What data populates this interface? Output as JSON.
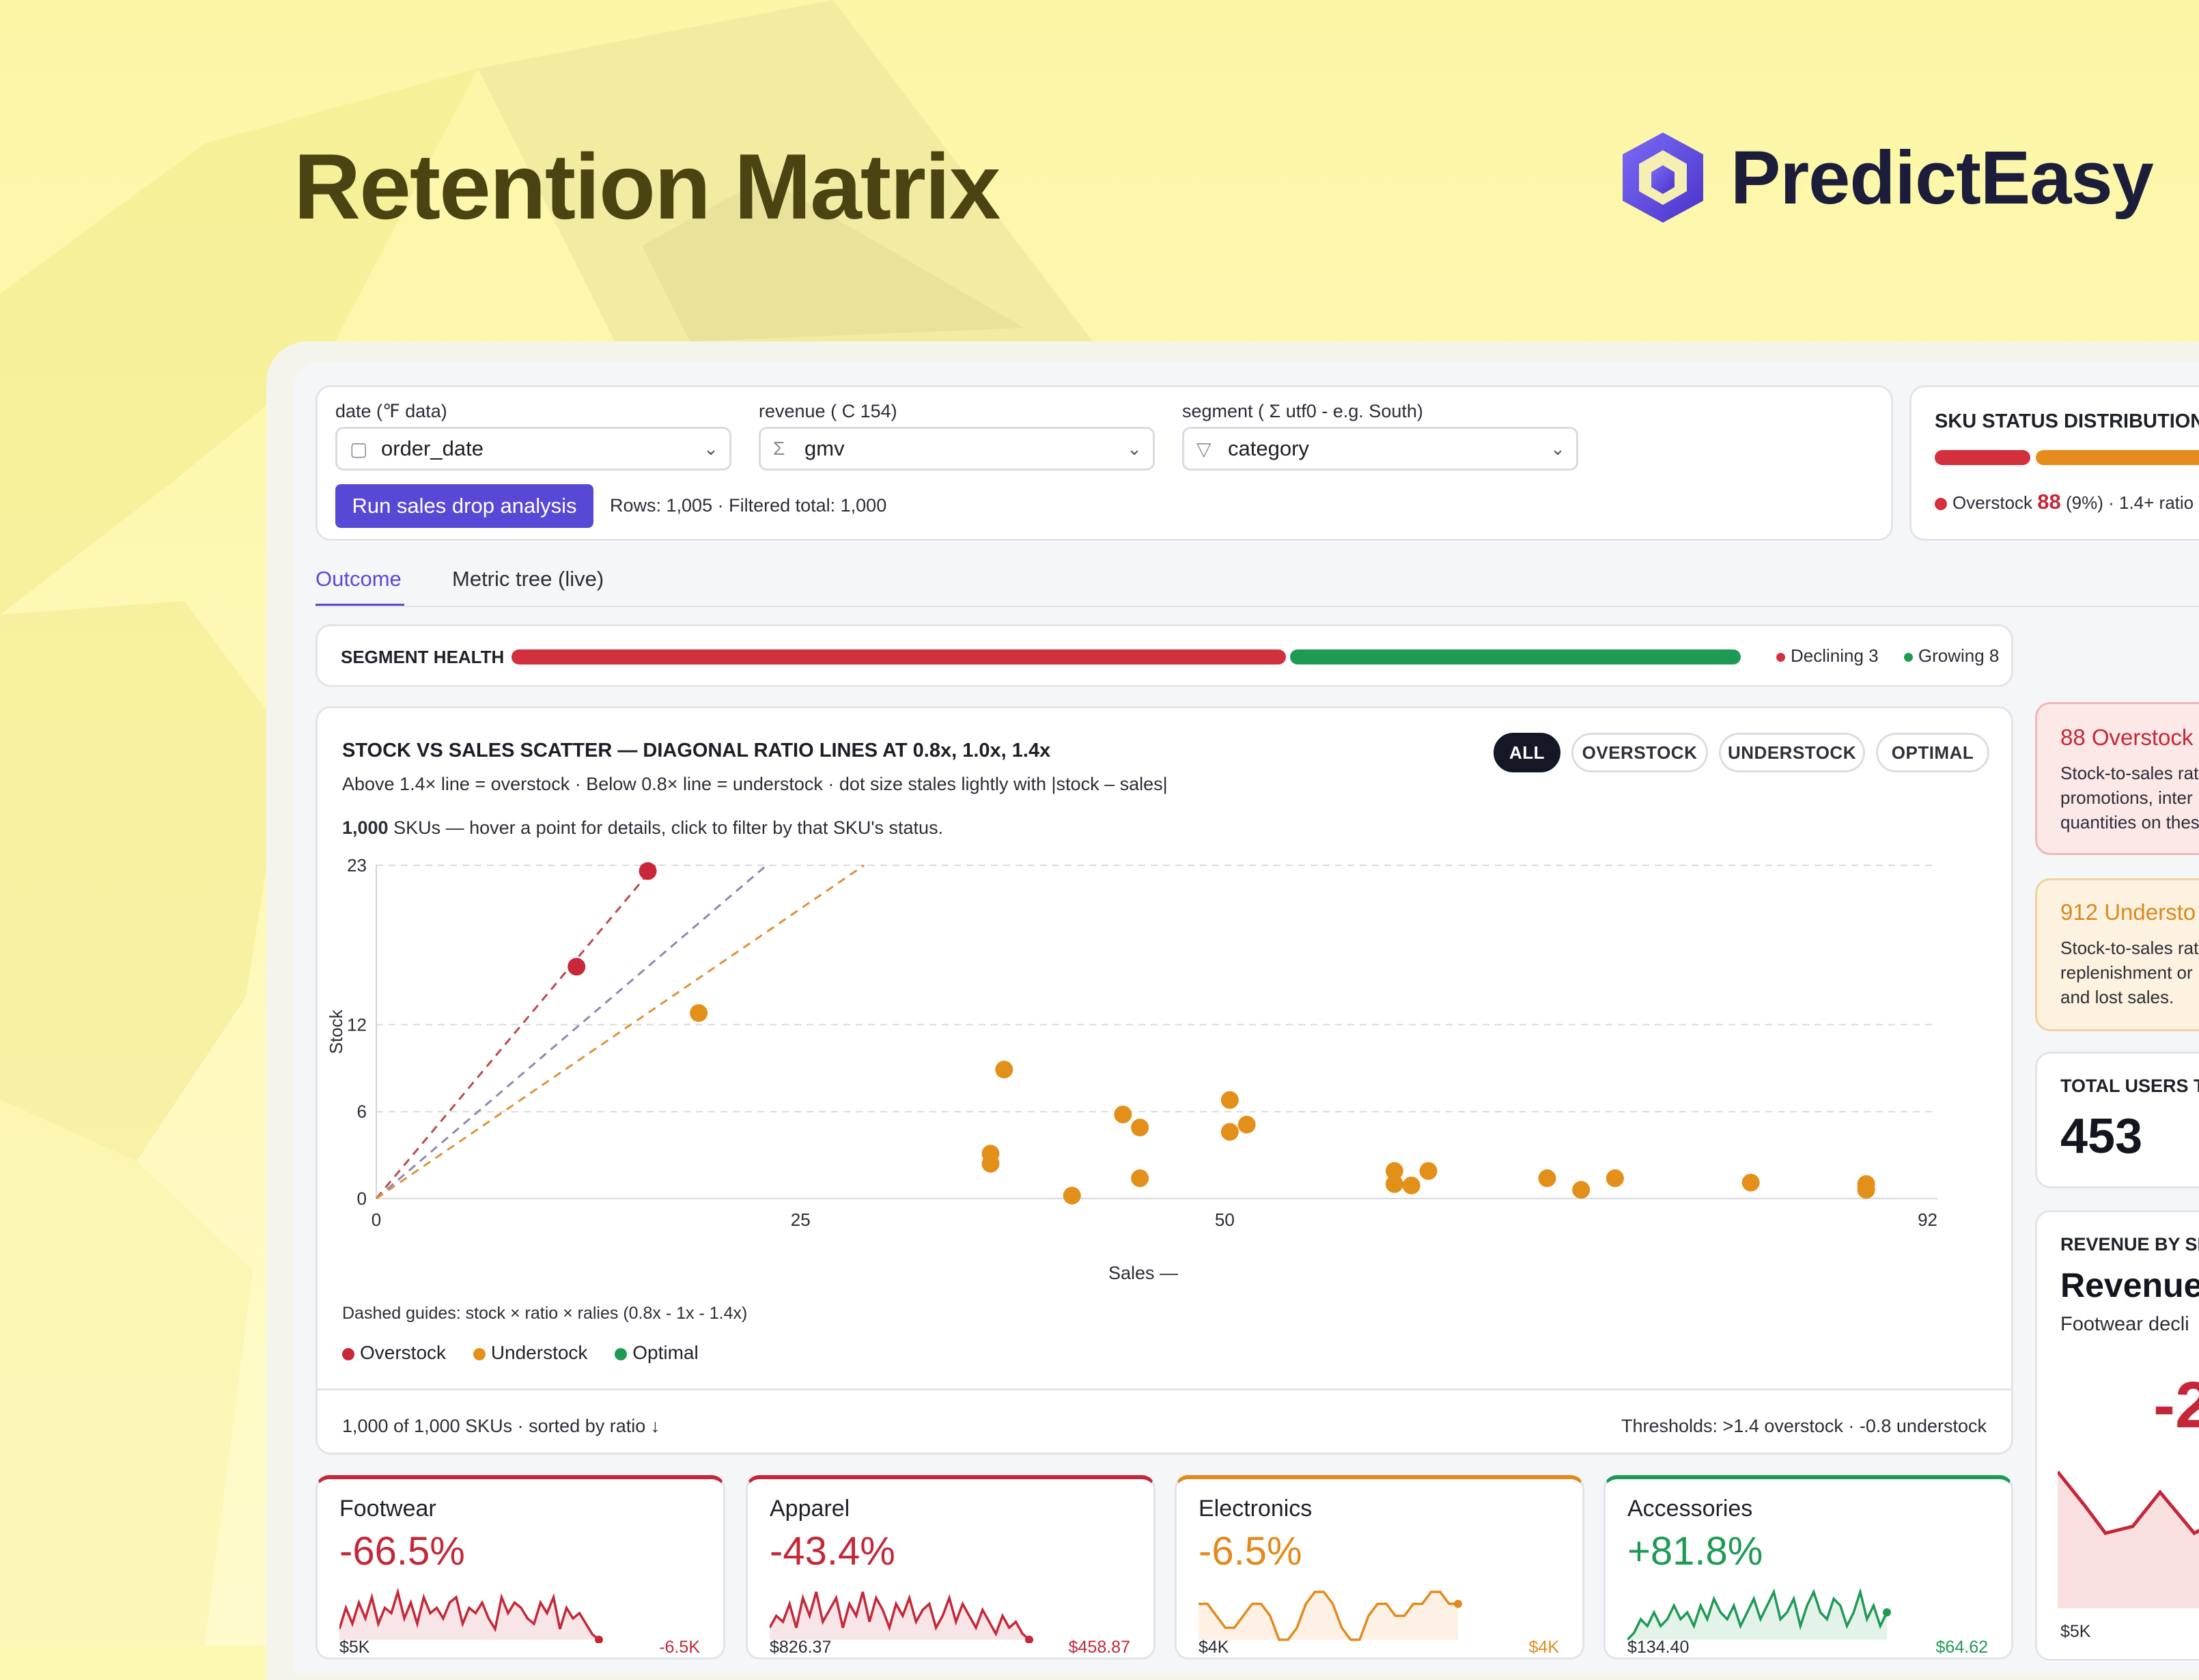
{
  "hero": {
    "title": "Retention Matrix",
    "brand_name": "PredictEasy"
  },
  "filters": {
    "date": {
      "label": "date (℉ data)",
      "value": "order_date",
      "icon": "calendar-icon"
    },
    "revenue": {
      "label": "revenue ( C 154)",
      "value": "gmv",
      "icon": "sigma-icon"
    },
    "segment": {
      "label": "segment ( Σ utf0 - e.g. South)",
      "value": "category",
      "icon": "filter-icon"
    },
    "run_button": "Run sales drop analysis",
    "rows_info": "Rows: 1,005 · Filtered total: 1,000"
  },
  "sku_status": {
    "title": "SKU STATUS DISTRIBUTION",
    "legend_prefix": "Overstock",
    "legend_count": "88",
    "legend_suffix": "(9%) · 1.4+ ratio"
  },
  "tabs": [
    {
      "label": "Outcome"
    },
    {
      "label": "Metric tree (live)"
    }
  ],
  "segment_health": {
    "label": "SEGMENT HEALTH",
    "declining_label": "Declining 3",
    "growing_label": "Growing 8",
    "declining_share": 0.63,
    "colors": {
      "declining": "#d2303c",
      "growing": "#1f9a55"
    }
  },
  "scatter": {
    "title": "STOCK VS SALES SCATTER — DIAGONAL RATIO LINES AT 0.8x, 1.0x, 1.4x",
    "subtitle": "Above 1.4× line = overstock · Below 0.8× line = understock · dot size stales lightly with |stock – sales|",
    "count_bold": "1,000",
    "count_rest": "SKUs — hover a point for details, click to filter by that SKU's status.",
    "filters": [
      "ALL",
      "OVERSTOCK",
      "UNDERSTOCK",
      "OPTIMAL"
    ],
    "guide_note": "Dashed guides: stock × ratio × ralies (0.8x - 1x - 1.4x)",
    "legend": [
      {
        "label": "Overstock",
        "color": "#c8283a"
      },
      {
        "label": "Understock",
        "color": "#e3901b"
      },
      {
        "label": "Optimal",
        "color": "#1f9a55"
      }
    ],
    "footer_left": "1,000 of 1,000 SKUs · sorted by ratio ↓",
    "footer_right": "Thresholds: >1.4 overstock · -0.8 understock"
  },
  "chart_data": {
    "type": "scatter",
    "xlabel": "Sales —",
    "ylabel": "Stock",
    "xticks": [
      0,
      25,
      50,
      92
    ],
    "yticks": [
      0,
      6,
      12,
      23
    ],
    "xlim": [
      0,
      92
    ],
    "ylim": [
      0,
      23
    ],
    "grid": true,
    "ratio_lines": [
      {
        "ratio": 1.4,
        "color": "#c0474f",
        "y_end": 23
      },
      {
        "ratio": 1.0,
        "color": "#8a8ab5",
        "y_end": 23
      },
      {
        "ratio": 0.8,
        "color": "#e0913a",
        "y_end": 23
      }
    ],
    "points": [
      {
        "x": 16,
        "y": 22.6,
        "status": "overstock"
      },
      {
        "x": 11.8,
        "y": 16,
        "status": "overstock"
      },
      {
        "x": 19,
        "y": 12.8,
        "status": "understock"
      },
      {
        "x": 37,
        "y": 8.9,
        "status": "understock"
      },
      {
        "x": 36.2,
        "y": 3.1,
        "status": "understock"
      },
      {
        "x": 36.2,
        "y": 2.4,
        "status": "understock"
      },
      {
        "x": 41,
        "y": 0.2,
        "status": "understock"
      },
      {
        "x": 44,
        "y": 5.8,
        "status": "understock"
      },
      {
        "x": 45,
        "y": 4.9,
        "status": "understock"
      },
      {
        "x": 45,
        "y": 1.4,
        "status": "understock"
      },
      {
        "x": 50.3,
        "y": 6.8,
        "status": "understock"
      },
      {
        "x": 50.3,
        "y": 4.6,
        "status": "understock"
      },
      {
        "x": 51.3,
        "y": 5.1,
        "status": "understock"
      },
      {
        "x": 60,
        "y": 1.9,
        "status": "understock"
      },
      {
        "x": 60,
        "y": 1.0,
        "status": "understock"
      },
      {
        "x": 61,
        "y": 0.9,
        "status": "understock"
      },
      {
        "x": 62,
        "y": 1.9,
        "status": "understock"
      },
      {
        "x": 69,
        "y": 1.4,
        "status": "understock"
      },
      {
        "x": 71,
        "y": 0.6,
        "status": "understock"
      },
      {
        "x": 73,
        "y": 1.4,
        "status": "understock"
      },
      {
        "x": 81,
        "y": 1.1,
        "status": "understock"
      },
      {
        "x": 87.8,
        "y": 1.0,
        "status": "understock"
      },
      {
        "x": 87.8,
        "y": 0.6,
        "status": "understock"
      }
    ]
  },
  "segments": [
    {
      "name": "Footwear",
      "pct": "-66.5%",
      "low": "$5K",
      "high": "-6.5K",
      "color": "#c42838",
      "accent": "#c42838",
      "trend": [
        3,
        7,
        4,
        8,
        5,
        9,
        4,
        7,
        6,
        10,
        5,
        8,
        4,
        9,
        6,
        7,
        5,
        8,
        9,
        4,
        7,
        6,
        8,
        5,
        3,
        9,
        6,
        8,
        7,
        5,
        4,
        8,
        6,
        9,
        3,
        7,
        5,
        6,
        4,
        2,
        1
      ]
    },
    {
      "name": "Apparel",
      "pct": "-43.4%",
      "low": "$826.37",
      "high": "$458.87",
      "color": "#c42838",
      "accent": "#c42838",
      "trend": [
        4,
        6,
        5,
        8,
        4,
        9,
        6,
        10,
        5,
        7,
        9,
        4,
        8,
        6,
        10,
        5,
        9,
        7,
        4,
        8,
        6,
        9,
        5,
        7,
        8,
        4,
        6,
        9,
        5,
        8,
        6,
        4,
        7,
        5,
        3,
        6,
        4,
        5,
        3,
        2
      ]
    },
    {
      "name": "Electronics",
      "pct": "-6.5%",
      "low": "$4K",
      "high": "$4K",
      "color": "#e38a1d",
      "accent": "#e38a1d",
      "trend": [
        6,
        6,
        5,
        4,
        4,
        5,
        6,
        6,
        5,
        3,
        3,
        4,
        6,
        7,
        7,
        6,
        4,
        3,
        3,
        5,
        6,
        6,
        5,
        5,
        6,
        6,
        7,
        7,
        6,
        6
      ]
    },
    {
      "name": "Accessories",
      "pct": "+81.8%",
      "low": "$134.40",
      "high": "$64.62",
      "color": "#1f9a55",
      "accent": "#1f9a55",
      "trend": [
        2,
        3,
        5,
        4,
        6,
        4,
        5,
        7,
        5,
        6,
        4,
        7,
        5,
        8,
        6,
        5,
        7,
        4,
        6,
        8,
        5,
        7,
        9,
        5,
        6,
        8,
        4,
        7,
        9,
        6,
        5,
        8,
        7,
        4,
        6,
        9,
        5,
        7,
        4,
        6
      ]
    }
  ],
  "side": {
    "overstock": {
      "title": "88 Overstock",
      "lines": [
        "Stock-to-sales rat",
        "promotions, inter",
        "quantities on thes"
      ]
    },
    "understock": {
      "title": "912 Understo",
      "lines": [
        "Stock-to-sales rat",
        "replenishment or",
        "and lost sales."
      ]
    },
    "total_users": {
      "label": "TOTAL USERS T",
      "value": "453"
    },
    "revenue": {
      "label": "REVENUE BY SE",
      "title": "Revenue",
      "sub": "Footwear decli",
      "big": "-2",
      "foot": "$5K"
    }
  }
}
